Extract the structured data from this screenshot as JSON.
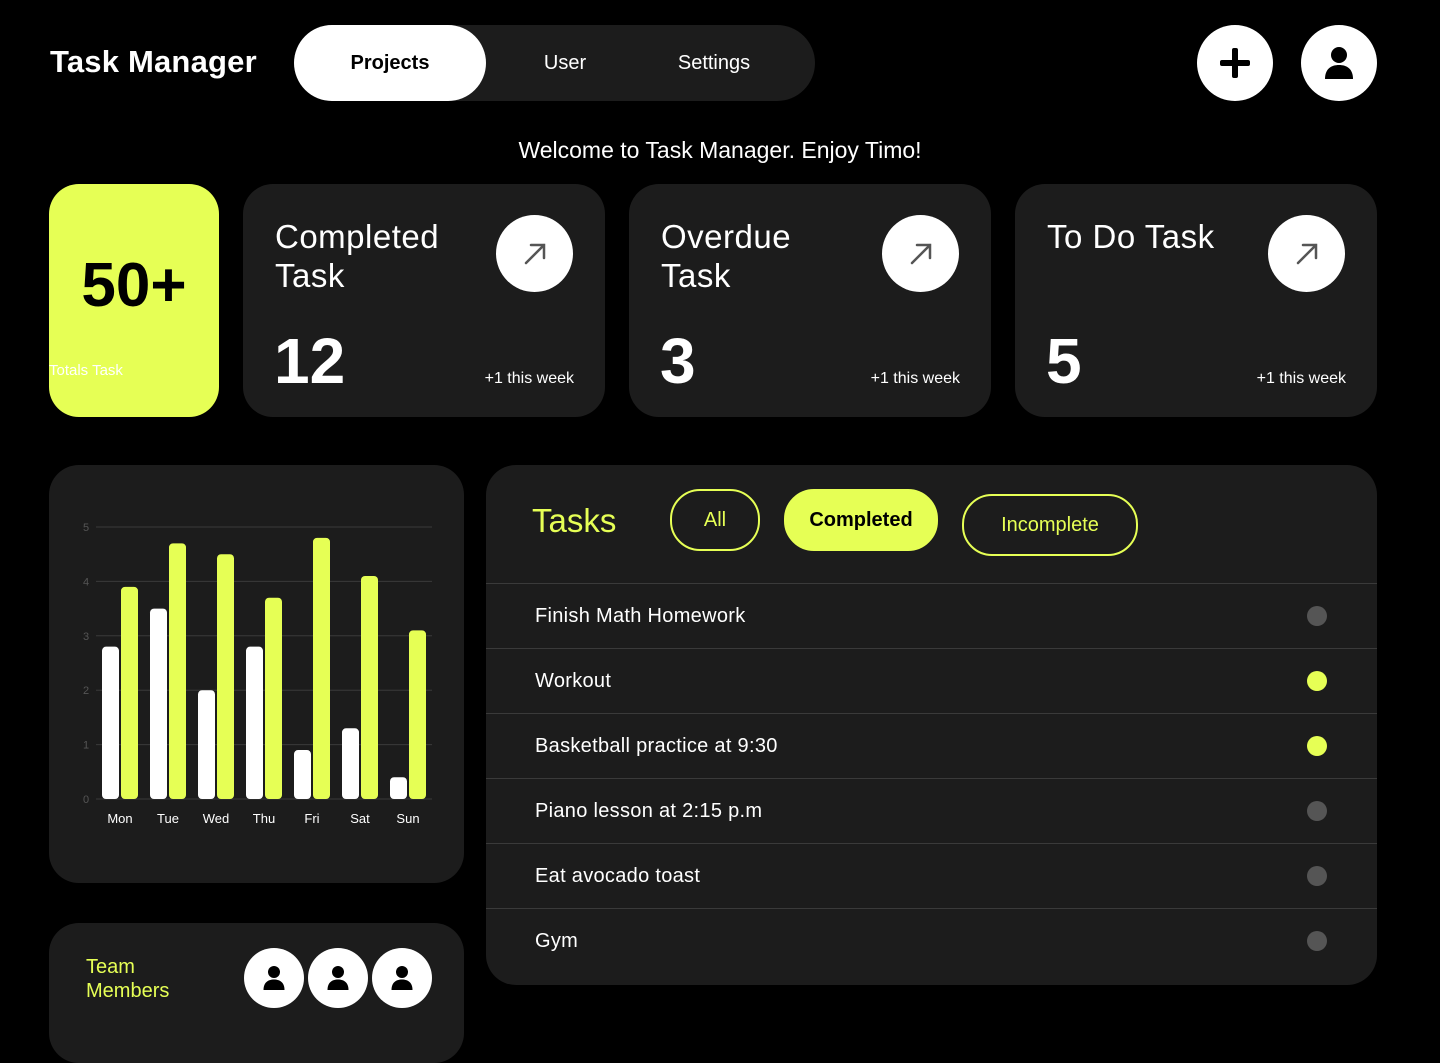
{
  "header": {
    "title": "Task Manager",
    "tabs": [
      {
        "label": "Projects",
        "active": true
      },
      {
        "label": "User",
        "active": false
      },
      {
        "label": "Settings",
        "active": false
      }
    ],
    "add_icon": "plus-icon",
    "profile_icon": "user-icon"
  },
  "welcome": "Welcome to Task Manager. Enjoy Timo!",
  "totals": {
    "number": "50+",
    "label": "Totals Task"
  },
  "stats": [
    {
      "title": "Completed Task",
      "number": "12",
      "sub": "+1 this week",
      "icon": "arrow-up-right-icon"
    },
    {
      "title": "Overdue Task",
      "number": "3",
      "sub": "+1 this week",
      "icon": "arrow-up-right-icon"
    },
    {
      "title": "To Do Task",
      "number": "5",
      "sub": "+1 this week",
      "icon": "arrow-up-right-icon"
    }
  ],
  "chart_data": {
    "type": "bar",
    "categories": [
      "Mon",
      "Tue",
      "Wed",
      "Thu",
      "Fri",
      "Sat",
      "Sun"
    ],
    "series": [
      {
        "color": "#ffffff",
        "values": [
          2.8,
          3.5,
          2.0,
          2.8,
          0.9,
          1.3,
          0.4
        ]
      },
      {
        "color": "#e6ff55",
        "values": [
          3.9,
          4.7,
          4.5,
          3.7,
          4.8,
          4.1,
          3.1
        ]
      }
    ],
    "yticks": [
      "0",
      "1",
      "2",
      "3",
      "4",
      "5"
    ],
    "ylim": [
      0,
      5
    ],
    "grid": true
  },
  "team": {
    "label": "Team Members",
    "member_count": 3,
    "icon": "user-icon"
  },
  "tasks": {
    "title": "Tasks",
    "filters": [
      {
        "label": "All",
        "active": false
      },
      {
        "label": "Completed",
        "active": true
      },
      {
        "label": "Incomplete",
        "active": false
      }
    ],
    "items": [
      {
        "label": "Finish Math Homework",
        "done": false
      },
      {
        "label": "Workout",
        "done": true
      },
      {
        "label": "Basketball practice at 9:30",
        "done": true
      },
      {
        "label": "Piano lesson at 2:15 p.m",
        "done": false
      },
      {
        "label": "Eat avocado toast",
        "done": false
      },
      {
        "label": "Gym",
        "done": false
      }
    ]
  },
  "colors": {
    "accent": "#e6ff55",
    "card": "#1c1c1c",
    "background": "#000000",
    "dot_inactive": "#555555"
  }
}
